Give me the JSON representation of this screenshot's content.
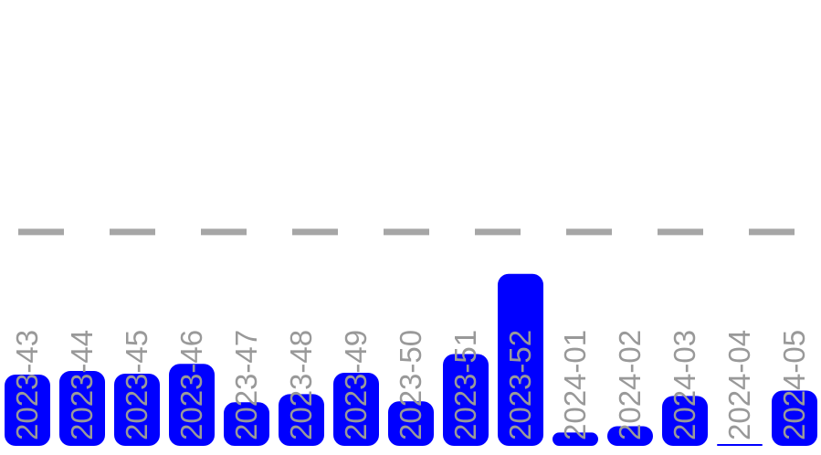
{
  "chart_data": {
    "type": "bar",
    "categories": [
      "2023-43",
      "2023-44",
      "2023-45",
      "2023-46",
      "2023-47",
      "2023-48",
      "2023-49",
      "2023-50",
      "2023-51",
      "2023-52",
      "2024-01",
      "2024-02",
      "2024-03",
      "2024-04",
      "2024-05"
    ],
    "values": [
      80,
      84,
      81,
      92,
      49,
      58,
      82,
      50,
      103,
      193,
      15,
      22,
      56,
      2,
      62
    ],
    "reference_line_value": 240,
    "ylim": [
      0,
      490
    ],
    "bar_color": "#0000ff",
    "label_color": "#999999",
    "reference_line_color": "#a6a6a6",
    "grid": false,
    "title": "",
    "xlabel": "",
    "ylabel": ""
  }
}
